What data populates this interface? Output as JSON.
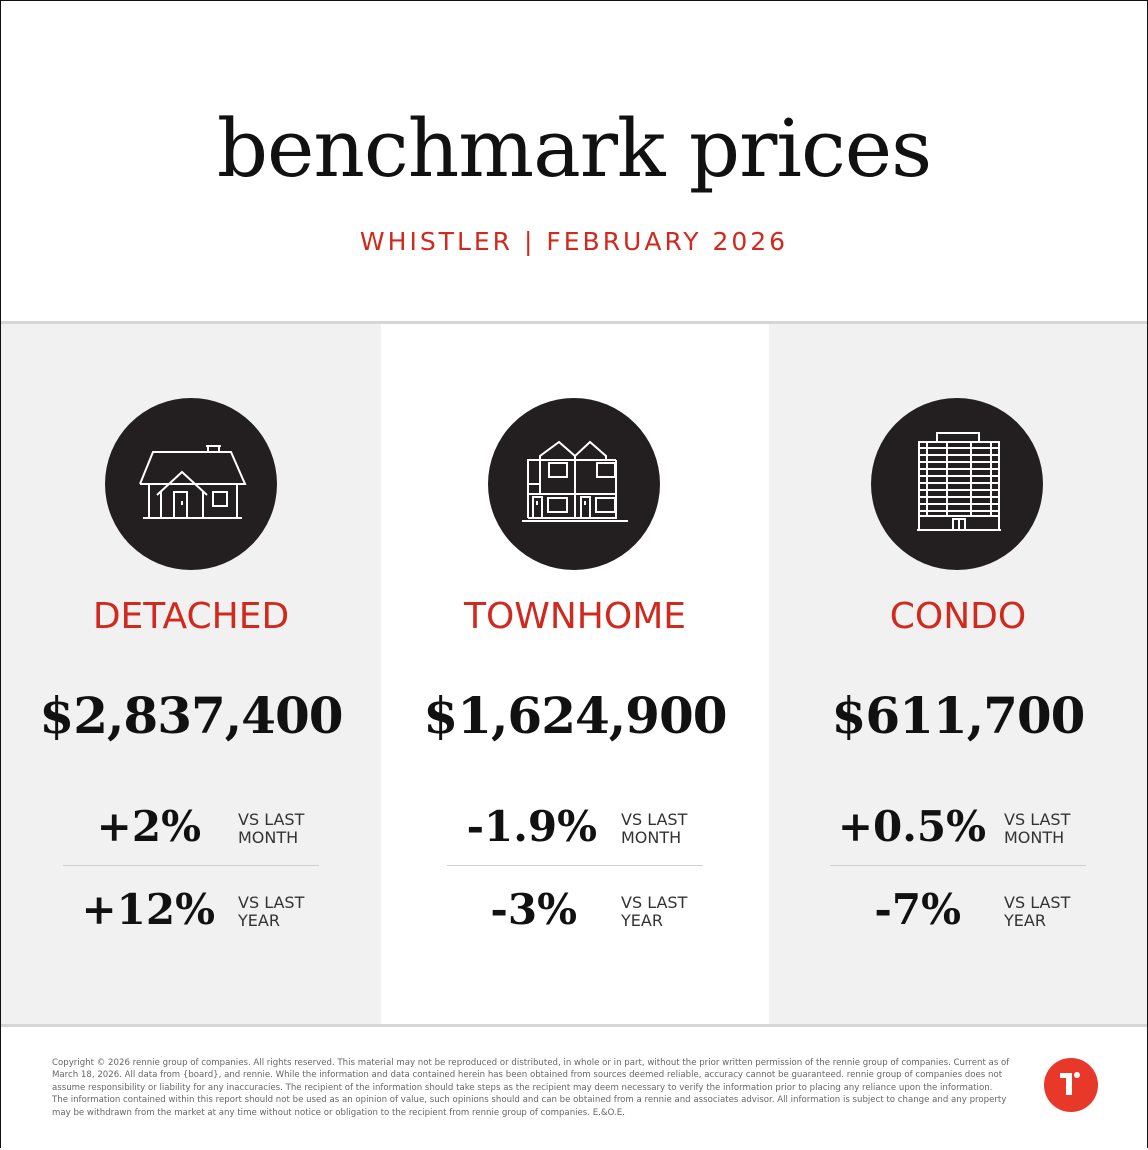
{
  "header": {
    "title": "benchmark prices",
    "subtitle": "WHISTLER | FEBRUARY 2026"
  },
  "categories": [
    {
      "icon": "detached-house-icon",
      "label": "DETACHED",
      "price": "$2,837,400",
      "month_change": "+2%",
      "month_label_1": "VS LAST",
      "month_label_2": "MONTH",
      "year_change": "+12%",
      "year_label_1": "VS LAST",
      "year_label_2": "YEAR"
    },
    {
      "icon": "townhome-icon",
      "label": "TOWNHOME",
      "price": "$1,624,900",
      "month_change": "-1.9%",
      "month_label_1": "VS LAST",
      "month_label_2": "MONTH",
      "year_change": "-3%",
      "year_label_1": "VS LAST",
      "year_label_2": "YEAR"
    },
    {
      "icon": "condo-building-icon",
      "label": "CONDO",
      "price": "$611,700",
      "month_change": "+0.5%",
      "month_label_1": "VS LAST",
      "month_label_2": "MONTH",
      "year_change": "-7%",
      "year_label_1": "VS LAST",
      "year_label_2": "YEAR"
    }
  ],
  "footer": {
    "disclaimer": "Copyright © 2026 rennie group of companies. All rights reserved. This material may not be reproduced or distributed, in whole or in part, without the prior written permission of the rennie group of companies. Current as of March 18, 2026. All data from {board}, and rennie. While the information and data contained herein has been obtained from sources deemed reliable, accuracy cannot be guaranteed. rennie group of companies does not assume responsibility or liability for any inaccuracies. The recipient of the information should take steps as the recipient may deem necessary to verify the information prior to placing any reliance upon the information. The information contained within this report should not be used as an opinion of value, such opinions should and can be obtained from a rennie and associates advisor. All information is subject to change and any property may be withdrawn from the market at any time without notice or obligation to the recipient from rennie group of companies. E.&O.E.",
    "logo": "rennie-logo"
  },
  "colors": {
    "accent": "#d0291d",
    "icon_background": "#231f20",
    "panel_grey": "#f1f1f1",
    "logo_red": "#e8382a"
  }
}
